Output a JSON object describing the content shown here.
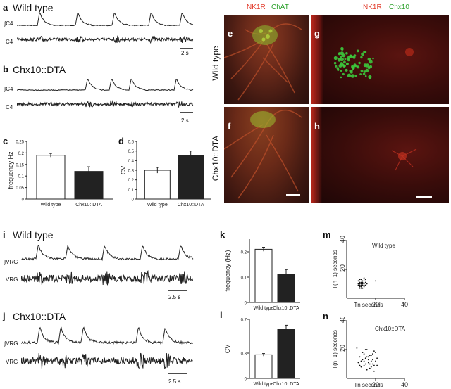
{
  "panel_a": {
    "letter": "a",
    "title": "Wild type",
    "trace_int": "∫C4",
    "trace_raw": "C4",
    "scale": "2 s"
  },
  "panel_b": {
    "letter": "b",
    "title": "Chx10::DTA",
    "trace_int": "∫C4",
    "trace_raw": "C4",
    "scale": "2 s"
  },
  "panel_i": {
    "letter": "i",
    "title": "Wild type",
    "trace_int": "∫VRG",
    "trace_raw": "VRG",
    "scale": "2.5 s"
  },
  "panel_j": {
    "letter": "j",
    "title": "Chx10::DTA",
    "trace_int": "∫VRG",
    "trace_raw": "VRG",
    "scale": "2.5 s"
  },
  "micro": {
    "stain_left_red": "NK1R",
    "stain_left_green": "ChAT",
    "stain_right_red": "NK1R",
    "stain_right_green": "Chx10",
    "row1_label": "Wild type",
    "row2_label": "Chx10::DTA",
    "letters": {
      "e": "e",
      "f": "f",
      "g": "g",
      "h": "h"
    },
    "colors": {
      "red": "#e23a2a",
      "green": "#3cc83c"
    }
  },
  "chart_data": [
    {
      "letter": "c",
      "type": "bar",
      "categories": [
        "Wild type",
        "Chx10::DTA"
      ],
      "values": [
        0.19,
        0.12
      ],
      "errors": [
        0.008,
        0.02
      ],
      "ylabel": "frequency  Hz",
      "ylim": [
        0,
        0.25
      ],
      "yticks": [
        "0",
        "0.05",
        "0.1",
        "0.15",
        "0.2",
        "0.25"
      ],
      "yticks_num": [
        0,
        0.05,
        0.1,
        0.15,
        0.2,
        0.25
      ]
    },
    {
      "letter": "d",
      "type": "bar",
      "categories": [
        "Wild type",
        "Chx10::DTA"
      ],
      "values": [
        0.3,
        0.45
      ],
      "errors": [
        0.03,
        0.05
      ],
      "ylabel": "CV",
      "ylim": [
        0,
        0.6
      ],
      "yticks": [
        "0",
        "0.1",
        "0.2",
        "0.3",
        "0.4",
        "0.5",
        "0.6"
      ],
      "yticks_num": [
        0,
        0.1,
        0.2,
        0.3,
        0.4,
        0.5,
        0.6
      ]
    },
    {
      "letter": "k",
      "type": "bar",
      "categories": [
        "Wild type",
        "Chx10::DTA"
      ],
      "values": [
        0.21,
        0.11
      ],
      "errors": [
        0.008,
        0.02
      ],
      "ylabel": "frequency  (Hz)",
      "ylim": [
        0,
        0.25
      ],
      "yticks": [
        "0",
        "0.1",
        "0.2"
      ],
      "yticks_num": [
        0,
        0.1,
        0.2
      ]
    },
    {
      "letter": "l",
      "type": "bar",
      "categories": [
        "Wild type",
        "Chx10::DTA"
      ],
      "values": [
        0.28,
        0.58
      ],
      "errors": [
        0.015,
        0.05
      ],
      "ylabel": "CV",
      "ylim": [
        0,
        0.7
      ],
      "yticks": [
        "0",
        "0.3",
        "0.7"
      ],
      "yticks_num": [
        0,
        0.3,
        0.7
      ]
    },
    {
      "letter": "m",
      "type": "scatter",
      "title": "Wild  type",
      "xlabel": "Tn   seconds",
      "ylabel": "T(n+1)   seconds",
      "xlim": [
        0,
        40
      ],
      "ylim": [
        0,
        40
      ],
      "xticks": [
        "20",
        "40"
      ],
      "yticks": [
        "20",
        "40"
      ],
      "points": [
        [
          8,
          9
        ],
        [
          9,
          11
        ],
        [
          10,
          8
        ],
        [
          11,
          10
        ],
        [
          12,
          12
        ],
        [
          9,
          7
        ],
        [
          10,
          13
        ],
        [
          11,
          9
        ],
        [
          13,
          11
        ],
        [
          8,
          12
        ],
        [
          12,
          8
        ],
        [
          10,
          10
        ],
        [
          9,
          9
        ],
        [
          11,
          12
        ],
        [
          12,
          10
        ],
        [
          10,
          7
        ],
        [
          13,
          9
        ],
        [
          8,
          10
        ],
        [
          9,
          13
        ],
        [
          11,
          7
        ],
        [
          12,
          14
        ],
        [
          10,
          11
        ],
        [
          9,
          8
        ],
        [
          11,
          11
        ],
        [
          14,
          10
        ],
        [
          13,
          13
        ],
        [
          10,
          9
        ],
        [
          12,
          9
        ],
        [
          20,
          12
        ],
        [
          9,
          10
        ]
      ]
    },
    {
      "letter": "n",
      "type": "scatter",
      "title": "Chx10::DTA",
      "xlabel": "Tn   seconds",
      "ylabel": "T(n+1)   seconds",
      "xlim": [
        0,
        40
      ],
      "ylim": [
        0,
        40
      ],
      "xticks": [
        "20",
        "40"
      ],
      "yticks": [
        "20",
        "40"
      ],
      "points": [
        [
          7,
          21
        ],
        [
          9,
          15
        ],
        [
          10,
          12
        ],
        [
          11,
          18
        ],
        [
          12,
          9
        ],
        [
          13,
          14
        ],
        [
          14,
          20
        ],
        [
          15,
          11
        ],
        [
          16,
          16
        ],
        [
          17,
          8
        ],
        [
          18,
          13
        ],
        [
          19,
          19
        ],
        [
          12,
          17
        ],
        [
          10,
          8
        ],
        [
          14,
          6
        ],
        [
          16,
          10
        ],
        [
          18,
          17
        ],
        [
          20,
          12
        ],
        [
          11,
          13
        ],
        [
          13,
          10
        ],
        [
          15,
          15
        ],
        [
          17,
          12
        ],
        [
          19,
          9
        ],
        [
          21,
          14
        ],
        [
          8,
          11
        ],
        [
          12,
          12
        ],
        [
          14,
          15
        ],
        [
          16,
          7
        ],
        [
          18,
          10
        ],
        [
          20,
          18
        ],
        [
          13,
          20
        ],
        [
          9,
          9
        ],
        [
          15,
          13
        ],
        [
          17,
          16
        ],
        [
          19,
          5
        ],
        [
          21,
          9
        ]
      ]
    }
  ]
}
